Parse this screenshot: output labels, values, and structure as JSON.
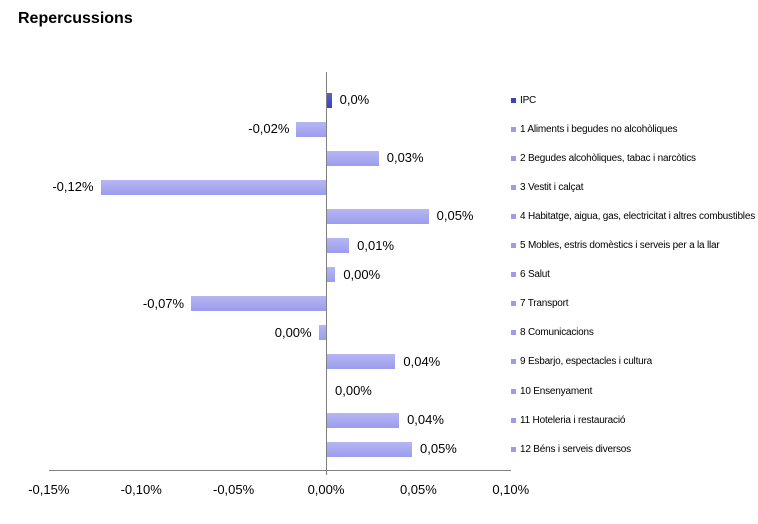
{
  "title": "Repercussions",
  "colors": {
    "bar_light": "#9c9cee",
    "bar_light_edge": "#b6b6f4",
    "bar_dark": "#3d43c0",
    "axis": "#808080",
    "text": "#000000",
    "background": "#ffffff"
  },
  "chart_data": {
    "type": "bar",
    "orientation": "horizontal",
    "title": "Repercussions",
    "xlabel": "",
    "ylabel": "",
    "xlim": [
      -0.15,
      0.1
    ],
    "grid": false,
    "legend_position": "right",
    "x_ticks": [
      {
        "label": "-0,15%",
        "value": -0.15
      },
      {
        "label": "-0,10%",
        "value": -0.1
      },
      {
        "label": "-0,05%",
        "value": -0.05
      },
      {
        "label": "0,00%",
        "value": 0.0
      },
      {
        "label": "0,05%",
        "value": 0.05
      },
      {
        "label": "0,10%",
        "value": 0.1
      }
    ],
    "items": [
      {
        "legend": "IPC",
        "label": "0,0%",
        "value": 0.0025,
        "series": "ipc"
      },
      {
        "legend": "1 Aliments i begudes no alcohòliques",
        "label": "-0,02%",
        "value": -0.016,
        "series": "category"
      },
      {
        "legend": "2 Begudes alcohòliques, tabac i narcòtics",
        "label": "0,03%",
        "value": 0.028,
        "series": "category"
      },
      {
        "legend": "3 Vestit i calçat",
        "label": "-0,12%",
        "value": -0.122,
        "series": "category"
      },
      {
        "legend": "4 Habitatge, aigua, gas, electricitat i altres combustibles",
        "label": "0,05%",
        "value": 0.055,
        "series": "category"
      },
      {
        "legend": "5 Mobles, estris domèstics i serveis per a la llar",
        "label": "0,01%",
        "value": 0.012,
        "series": "category"
      },
      {
        "legend": "6 Salut",
        "label": "0,00%",
        "value": 0.0045,
        "series": "category"
      },
      {
        "legend": "7 Transport",
        "label": "-0,07%",
        "value": -0.073,
        "series": "category"
      },
      {
        "legend": "8 Comunicacions",
        "label": "0,00%",
        "value": -0.004,
        "series": "category"
      },
      {
        "legend": "9 Esbarjo, espectacles i cultura",
        "label": "0,04%",
        "value": 0.037,
        "series": "category"
      },
      {
        "legend": "10 Ensenyament",
        "label": "0,00%",
        "value": 0.0,
        "series": "category"
      },
      {
        "legend": "11 Hoteleria i restauració",
        "label": "0,04%",
        "value": 0.039,
        "series": "category"
      },
      {
        "legend": "12 Béns i serveis diversos",
        "label": "0,05%",
        "value": 0.046,
        "series": "category"
      }
    ]
  }
}
